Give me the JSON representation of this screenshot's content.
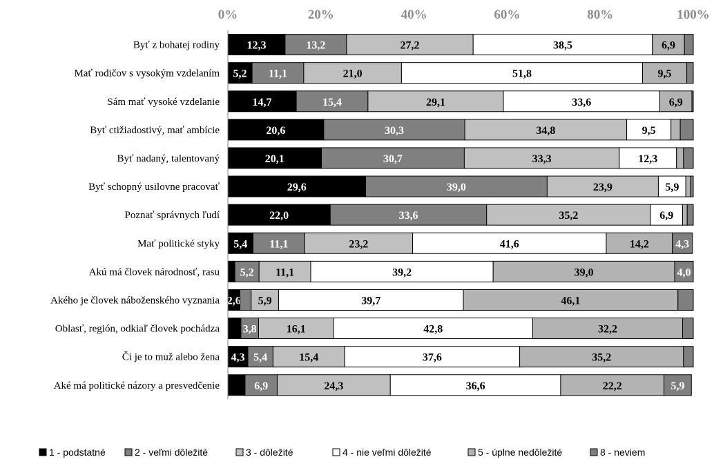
{
  "chart_data": {
    "type": "bar",
    "orientation": "horizontal-stacked-100",
    "xlim": [
      0,
      100
    ],
    "x_ticks": [
      "0%",
      "20%",
      "40%",
      "60%",
      "80%",
      "100%"
    ],
    "grid": false,
    "legend_placement": "bottom",
    "categories": [
      "Byť z bohatej rodiny",
      "Mať rodičov s vysokým vzdelaním",
      "Sám mať vysoké vzdelanie",
      "Byť ctižiadostivý, mať ambície",
      "Byť nadaný, talentovaný",
      "Byť schopný usilovne pracovať",
      "Poznať správnych ľudí",
      "Mať politické styky",
      "Akú má človek národnosť, rasu",
      "Akého je človek náboženského vyznania",
      "Oblasť, región, odkiaľ človek pochádza",
      "Či je to muž alebo žena",
      "Aké má politické názory a presvedčenie"
    ],
    "series": [
      {
        "name": "1 - podstatné",
        "color": "#000000",
        "text_color": "#ffffff",
        "values": [
          12.3,
          5.2,
          14.7,
          20.6,
          20.1,
          29.6,
          22.0,
          5.4,
          1.5,
          2.6,
          2.8,
          4.3,
          3.7
        ],
        "labels": [
          "12,3",
          "5,2",
          "14,7",
          "20,6",
          "20,1",
          "29,6",
          "22,0",
          "5,4",
          "",
          "2,6",
          "",
          "4,3",
          ""
        ]
      },
      {
        "name": "2 - veľmi dôležité",
        "color": "#808080",
        "text_color": "#ffffff",
        "values": [
          13.2,
          11.1,
          15.4,
          30.3,
          30.7,
          39.0,
          33.6,
          11.1,
          5.2,
          2.4,
          3.8,
          5.4,
          6.9
        ],
        "labels": [
          "13,2",
          "11,1",
          "15,4",
          "30,3",
          "30,7",
          "39,0",
          "33,6",
          "11,1",
          "5,2",
          "",
          "3,8",
          "5,4",
          "6,9"
        ]
      },
      {
        "name": "3 - dôležité",
        "color": "#c0c0c0",
        "text_color": "#000000",
        "values": [
          27.2,
          21.0,
          29.1,
          34.8,
          33.3,
          23.9,
          35.2,
          23.2,
          11.1,
          5.9,
          16.1,
          15.4,
          24.3
        ],
        "labels": [
          "27,2",
          "21,0",
          "29,1",
          "34,8",
          "33,3",
          "23,9",
          "35,2",
          "23,2",
          "11,1",
          "5,9",
          "16,1",
          "15,4",
          "24,3"
        ]
      },
      {
        "name": "4 - nie veľmi dôležité",
        "color": "#ffffff",
        "text_color": "#000000",
        "values": [
          38.5,
          51.8,
          33.6,
          9.5,
          12.3,
          5.9,
          6.9,
          41.6,
          39.2,
          39.7,
          42.8,
          37.6,
          36.6
        ],
        "labels": [
          "38,5",
          "51,8",
          "33,6",
          "9,5",
          "12,3",
          "5,9",
          "6,9",
          "41,6",
          "39,2",
          "39,7",
          "42,8",
          "37,6",
          "36,6"
        ]
      },
      {
        "name": "5 - úplne nedôležité",
        "color": "#b3b3b3",
        "text_color": "#000000",
        "values": [
          6.9,
          9.5,
          6.9,
          2.0,
          1.5,
          1.0,
          1.0,
          14.2,
          39.0,
          46.1,
          32.2,
          35.2,
          22.2
        ],
        "labels": [
          "6,9",
          "9,5",
          "6,9",
          "",
          "",
          "",
          "",
          "14,2",
          "39,0",
          "46,1",
          "32,2",
          "35,2",
          "22,2"
        ]
      },
      {
        "name": "8 - neviem",
        "color": "#7f7f7f",
        "text_color": "#ffffff",
        "values": [
          1.9,
          1.4,
          0.3,
          2.8,
          2.1,
          0.6,
          1.3,
          4.3,
          4.0,
          3.3,
          2.3,
          2.1,
          5.9
        ],
        "labels": [
          "",
          "",
          "",
          "",
          "",
          "",
          "",
          "4,3",
          "4,0",
          "",
          "",
          "",
          "5,9"
        ]
      }
    ]
  }
}
